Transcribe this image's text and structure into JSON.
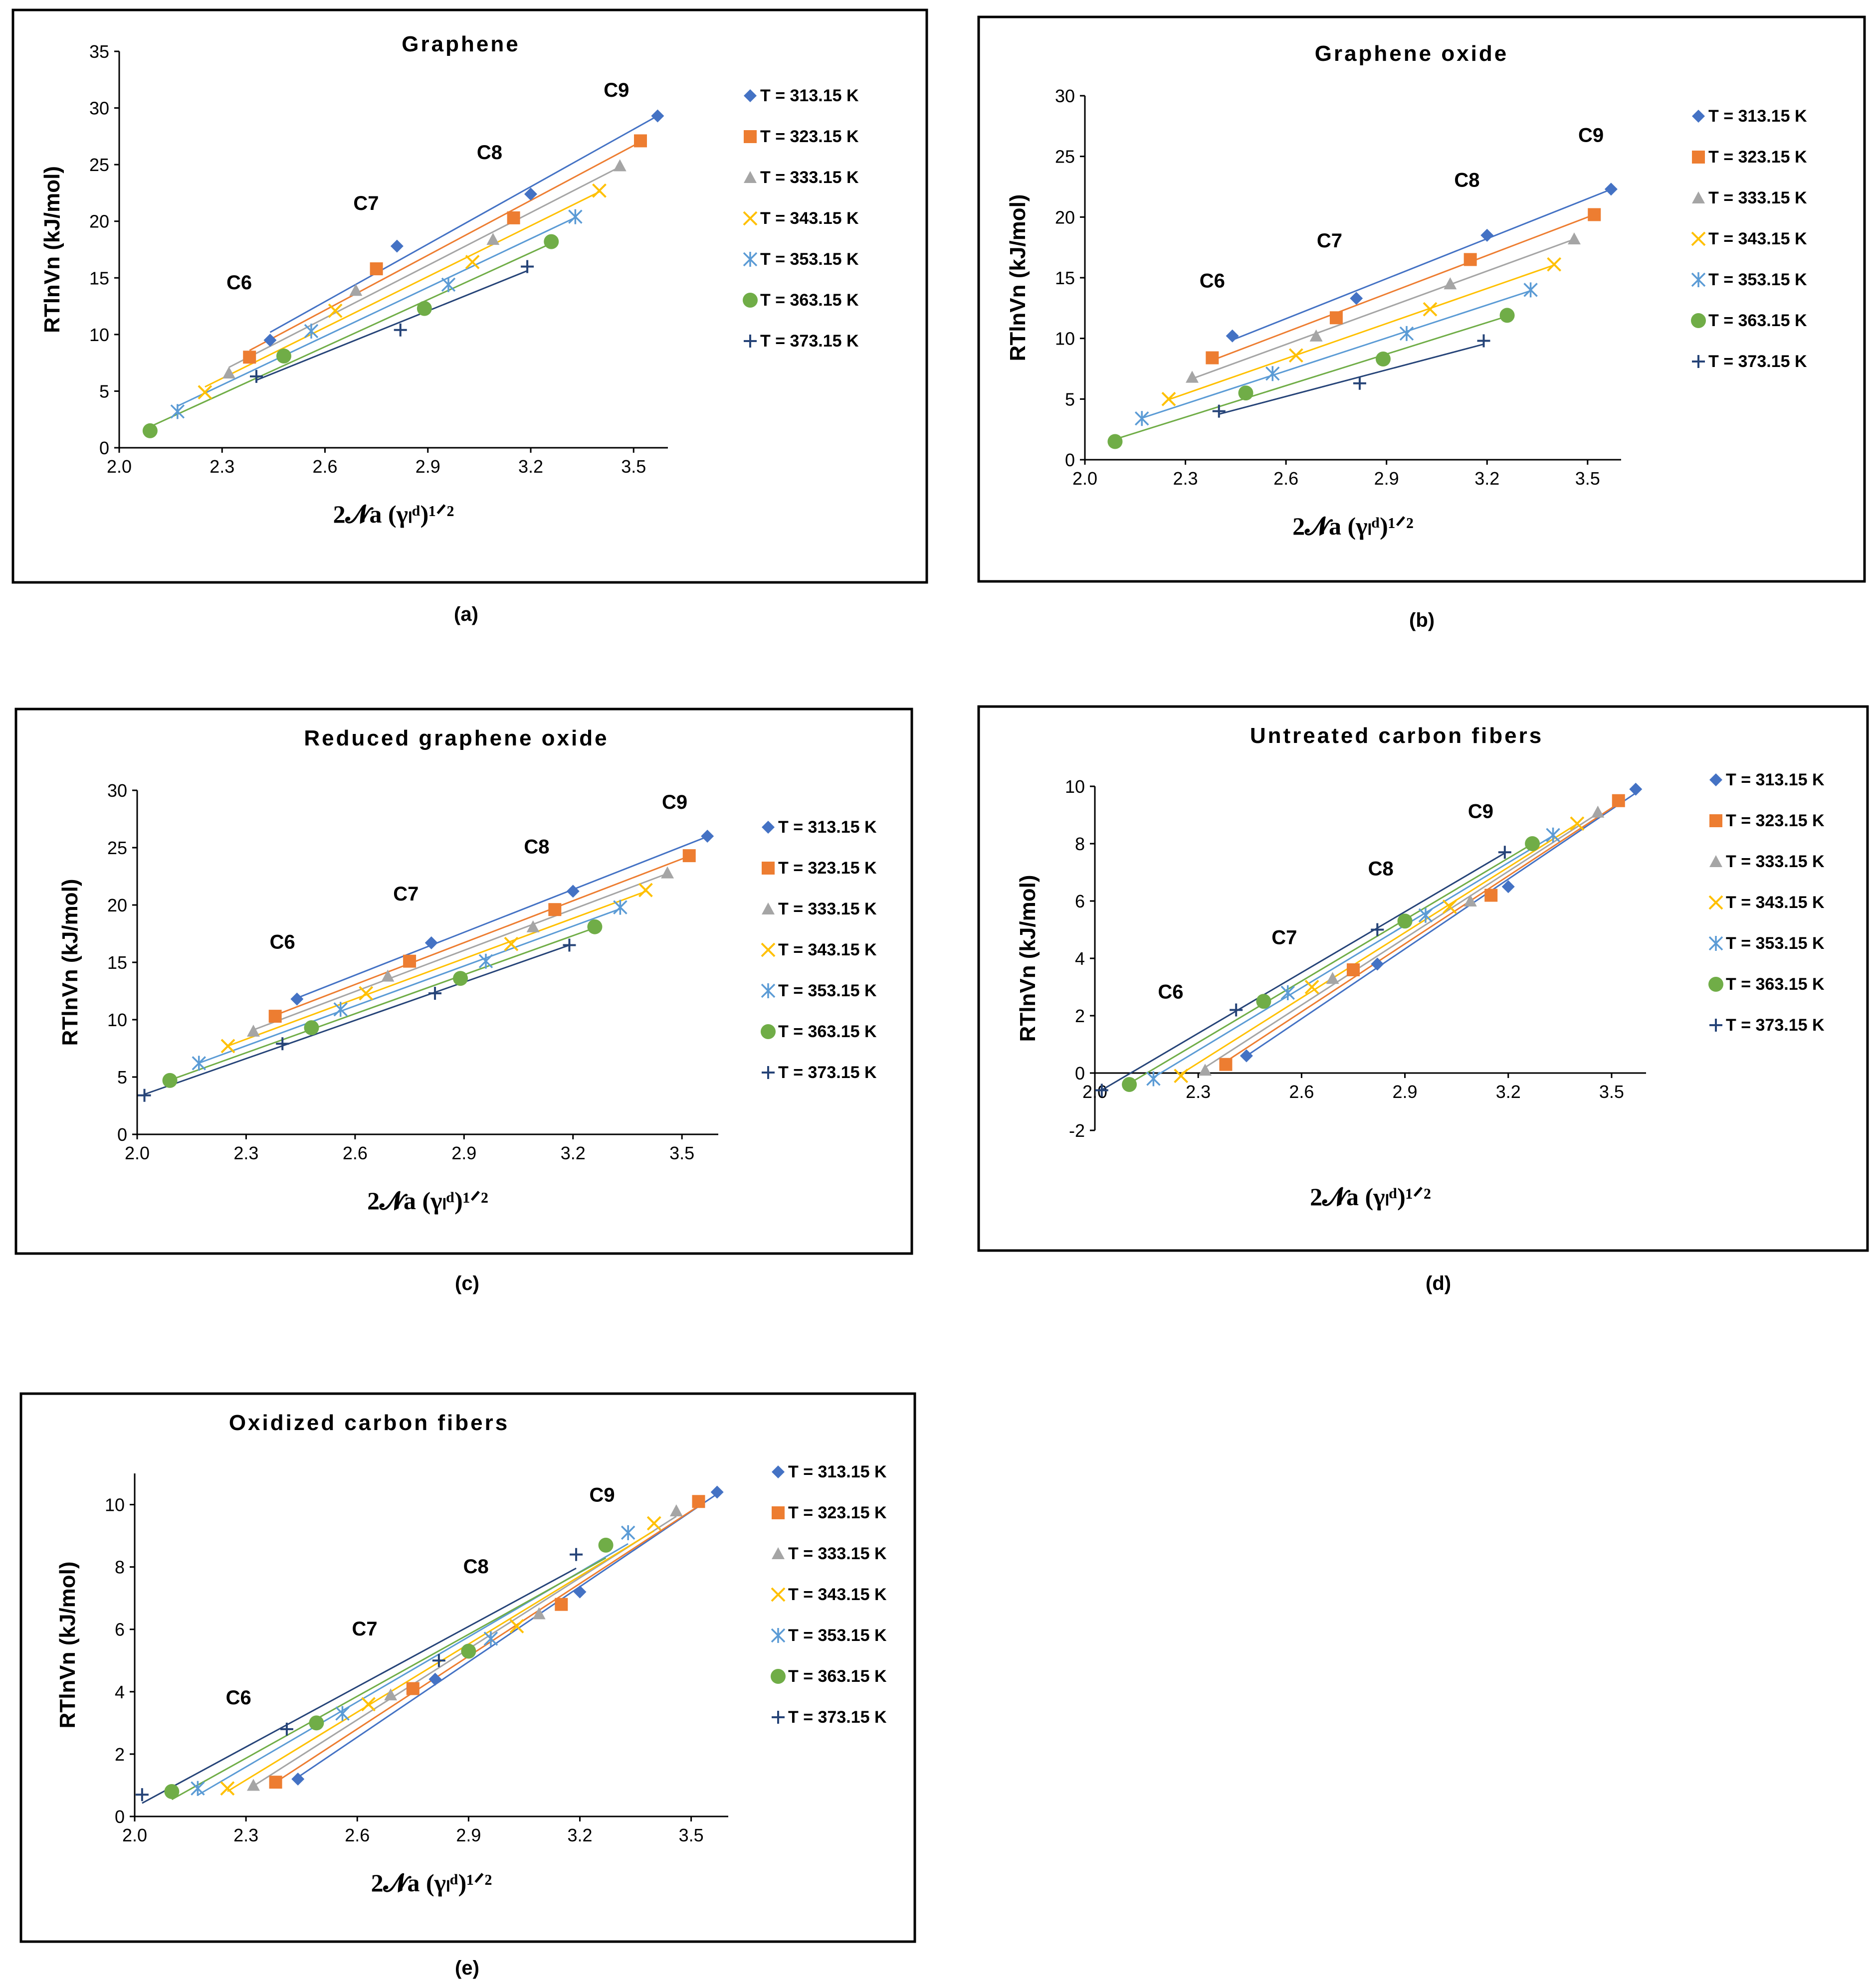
{
  "colors": {
    "T313": "#4472C4",
    "T323": "#ED7D31",
    "T333": "#A5A5A5",
    "T343": "#FFC000",
    "T353": "#5B9BD5",
    "T363": "#70AD47",
    "T373": "#264478"
  },
  "legend": [
    "T = 313.15 K",
    "T = 323.15 K",
    "T = 333.15 K",
    "T = 343.15 K",
    "T = 353.15 K",
    "T = 363.15 K",
    "T = 373.15 K"
  ],
  "chart_data": [
    {
      "type": "scatter",
      "title": "Graphene",
      "caption": "(a)",
      "xlabel": "2𝓝a (γₗᵈ)¹ᐟ²",
      "ylabel": "RTlnVn (kJ/mol)",
      "xlim": [
        2.0,
        3.6
      ],
      "ylim": [
        0,
        35
      ],
      "xticks": [
        2.0,
        2.3,
        2.6,
        2.9,
        3.2,
        3.5
      ],
      "yticks": [
        0,
        5,
        10,
        15,
        20,
        25,
        30,
        35
      ],
      "legend_position": "right",
      "annotations": [
        {
          "text": "C6",
          "x": 2.35,
          "y": 14
        },
        {
          "text": "C7",
          "x": 2.72,
          "y": 21
        },
        {
          "text": "C8",
          "x": 3.08,
          "y": 25.5
        },
        {
          "text": "C9",
          "x": 3.45,
          "y": 31
        }
      ],
      "series": [
        {
          "name": "T = 313.15 K",
          "marker": "diamond",
          "x": [
            2.44,
            2.81,
            3.2,
            3.57
          ],
          "y": [
            9.5,
            17.8,
            22.4,
            29.3
          ]
        },
        {
          "name": "T = 323.15 K",
          "marker": "square",
          "x": [
            2.38,
            2.75,
            3.15,
            3.52
          ],
          "y": [
            8.0,
            15.8,
            20.3,
            27.1
          ]
        },
        {
          "name": "T = 333.15 K",
          "marker": "triangle",
          "x": [
            2.32,
            2.69,
            3.09,
            3.46
          ],
          "y": [
            6.6,
            13.9,
            18.4,
            24.9
          ]
        },
        {
          "name": "T = 343.15 K",
          "marker": "x",
          "x": [
            2.25,
            2.63,
            3.03,
            3.4
          ],
          "y": [
            4.9,
            12.1,
            16.4,
            22.7
          ]
        },
        {
          "name": "T = 353.15 K",
          "marker": "star",
          "x": [
            2.17,
            2.56,
            2.96,
            3.33
          ],
          "y": [
            3.2,
            10.3,
            14.4,
            20.4
          ]
        },
        {
          "name": "T = 363.15 K",
          "marker": "circle",
          "x": [
            2.09,
            2.48,
            2.89,
            3.26
          ],
          "y": [
            1.5,
            8.1,
            12.3,
            18.2
          ]
        },
        {
          "name": "T = 373.15 K",
          "marker": "plus",
          "x": [
            2.4,
            2.82,
            3.19
          ],
          "y": [
            6.3,
            10.4,
            16.0
          ]
        }
      ]
    },
    {
      "type": "scatter",
      "title": "Graphene oxide",
      "caption": "(b)",
      "xlabel": "2𝓝a (γₗᵈ)¹ᐟ²",
      "ylabel": "RTlnVn (kJ/mol)",
      "xlim": [
        2.0,
        3.6
      ],
      "ylim": [
        0,
        30
      ],
      "xticks": [
        2.0,
        2.3,
        2.6,
        2.9,
        3.2,
        3.5
      ],
      "yticks": [
        0,
        5,
        10,
        15,
        20,
        25,
        30
      ],
      "legend_position": "right",
      "annotations": [
        {
          "text": "C6",
          "x": 2.38,
          "y": 14.2
        },
        {
          "text": "C7",
          "x": 2.73,
          "y": 17.5
        },
        {
          "text": "C8",
          "x": 3.14,
          "y": 22.5
        },
        {
          "text": "C9",
          "x": 3.51,
          "y": 26.2
        }
      ],
      "series": [
        {
          "name": "T = 313.15 K",
          "marker": "diamond",
          "x": [
            2.44,
            2.81,
            3.2,
            3.57
          ],
          "y": [
            10.2,
            13.3,
            18.5,
            22.3
          ]
        },
        {
          "name": "T = 323.15 K",
          "marker": "square",
          "x": [
            2.38,
            2.75,
            3.15,
            3.52
          ],
          "y": [
            8.4,
            11.7,
            16.5,
            20.2
          ]
        },
        {
          "name": "T = 333.15 K",
          "marker": "triangle",
          "x": [
            2.32,
            2.69,
            3.09,
            3.46
          ],
          "y": [
            6.8,
            10.2,
            14.5,
            18.2
          ]
        },
        {
          "name": "T = 343.15 K",
          "marker": "x",
          "x": [
            2.25,
            2.63,
            3.03,
            3.4
          ],
          "y": [
            5.0,
            8.6,
            12.4,
            16.1
          ]
        },
        {
          "name": "T = 353.15 K",
          "marker": "star",
          "x": [
            2.17,
            2.56,
            2.96,
            3.33
          ],
          "y": [
            3.4,
            7.1,
            10.4,
            14.0
          ]
        },
        {
          "name": "T = 363.15 K",
          "marker": "circle",
          "x": [
            2.09,
            2.48,
            2.89,
            3.26
          ],
          "y": [
            1.5,
            5.5,
            8.3,
            11.9
          ]
        },
        {
          "name": "T = 373.15 K",
          "marker": "plus",
          "x": [
            2.4,
            2.82,
            3.19
          ],
          "y": [
            4.0,
            6.3,
            9.8
          ]
        }
      ]
    },
    {
      "type": "scatter",
      "title": "Reduced graphene oxide",
      "caption": "(c)",
      "xlabel": "2𝓝a (γₗᵈ)¹ᐟ²",
      "ylabel": "RTlnVn (kJ/mol)",
      "xlim": [
        2.0,
        3.6
      ],
      "ylim": [
        0,
        30
      ],
      "xticks": [
        2.0,
        2.3,
        2.6,
        2.9,
        3.2,
        3.5
      ],
      "yticks": [
        0,
        5,
        10,
        15,
        20,
        25,
        30
      ],
      "legend_position": "right",
      "annotations": [
        {
          "text": "C6",
          "x": 2.4,
          "y": 16.2
        },
        {
          "text": "C7",
          "x": 2.74,
          "y": 20.4
        },
        {
          "text": "C8",
          "x": 3.1,
          "y": 24.5
        },
        {
          "text": "C9",
          "x": 3.48,
          "y": 28.4
        }
      ],
      "series": [
        {
          "name": "T = 313.15 K",
          "marker": "diamond",
          "x": [
            2.44,
            2.81,
            3.2,
            3.57
          ],
          "y": [
            11.8,
            16.7,
            21.2,
            26.0
          ]
        },
        {
          "name": "T = 323.15 K",
          "marker": "square",
          "x": [
            2.38,
            2.75,
            3.15,
            3.52
          ],
          "y": [
            10.3,
            15.1,
            19.6,
            24.3
          ]
        },
        {
          "name": "T = 333.15 K",
          "marker": "triangle",
          "x": [
            2.32,
            2.69,
            3.09,
            3.46
          ],
          "y": [
            9.0,
            13.8,
            18.1,
            22.8
          ]
        },
        {
          "name": "T = 343.15 K",
          "marker": "x",
          "x": [
            2.25,
            2.63,
            3.03,
            3.4
          ],
          "y": [
            7.7,
            12.3,
            16.6,
            21.3
          ]
        },
        {
          "name": "T = 353.15 K",
          "marker": "star",
          "x": [
            2.17,
            2.56,
            2.96,
            3.33
          ],
          "y": [
            6.2,
            10.9,
            15.1,
            19.8
          ]
        },
        {
          "name": "T = 363.15 K",
          "marker": "circle",
          "x": [
            2.09,
            2.48,
            2.89,
            3.26
          ],
          "y": [
            4.7,
            9.3,
            13.6,
            18.1
          ]
        },
        {
          "name": "T = 373.15 K",
          "marker": "plus",
          "x": [
            2.02,
            2.4,
            2.82,
            3.19
          ],
          "y": [
            3.4,
            7.9,
            12.3,
            16.5
          ]
        }
      ]
    },
    {
      "type": "scatter",
      "title": "Untreated carbon fibers",
      "caption": "(d)",
      "xlabel": "2𝓝a (γₗᵈ)¹ᐟ²",
      "ylabel": "RTlnVn (kJ/mol)",
      "xlim": [
        2.0,
        3.6
      ],
      "ylim": [
        -2,
        10
      ],
      "xticks": [
        2.0,
        2.3,
        2.6,
        2.9,
        3.2,
        3.5
      ],
      "yticks": [
        -2,
        0,
        2,
        4,
        6,
        8,
        10
      ],
      "legend_position": "right",
      "annotations": [
        {
          "text": "C6",
          "x": 2.22,
          "y": 2.6
        },
        {
          "text": "C7",
          "x": 2.55,
          "y": 4.5
        },
        {
          "text": "C8",
          "x": 2.83,
          "y": 6.9
        },
        {
          "text": "C9",
          "x": 3.12,
          "y": 8.9
        }
      ],
      "series": [
        {
          "name": "T = 313.15 K",
          "marker": "diamond",
          "x": [
            2.44,
            2.82,
            3.2,
            3.57
          ],
          "y": [
            0.6,
            3.8,
            6.5,
            9.9
          ]
        },
        {
          "name": "T = 323.15 K",
          "marker": "square",
          "x": [
            2.38,
            2.75,
            3.15,
            3.52
          ],
          "y": [
            0.3,
            3.6,
            6.2,
            9.5
          ]
        },
        {
          "name": "T = 333.15 K",
          "marker": "triangle",
          "x": [
            2.32,
            2.69,
            3.09,
            3.46
          ],
          "y": [
            0.1,
            3.3,
            6.0,
            9.1
          ]
        },
        {
          "name": "T = 343.15 K",
          "marker": "x",
          "x": [
            2.25,
            2.63,
            3.03,
            3.4
          ],
          "y": [
            -0.1,
            3.0,
            5.8,
            8.7
          ]
        },
        {
          "name": "T = 353.15 K",
          "marker": "star",
          "x": [
            2.17,
            2.56,
            2.96,
            3.33
          ],
          "y": [
            -0.2,
            2.8,
            5.5,
            8.3
          ]
        },
        {
          "name": "T = 363.15 K",
          "marker": "circle",
          "x": [
            2.1,
            2.49,
            2.9,
            3.27
          ],
          "y": [
            -0.4,
            2.5,
            5.3,
            8.0
          ]
        },
        {
          "name": "T = 373.15 K",
          "marker": "plus",
          "x": [
            2.02,
            2.41,
            2.82,
            3.19
          ],
          "y": [
            -0.6,
            2.2,
            5.0,
            7.7
          ]
        }
      ]
    },
    {
      "type": "scatter",
      "title": "Oxidized carbon fibers",
      "caption": "(e)",
      "xlabel": "2𝓝a (γₗᵈ)¹ᐟ²",
      "ylabel": "RTlnVn (kJ/mol)",
      "xlim": [
        2.0,
        3.6
      ],
      "ylim": [
        0,
        11
      ],
      "xticks": [
        2.0,
        2.3,
        2.6,
        2.9,
        3.2,
        3.5
      ],
      "yticks": [
        0,
        2,
        4,
        6,
        8,
        10
      ],
      "legend_position": "right",
      "annotations": [
        {
          "text": "C6",
          "x": 2.28,
          "y": 3.6
        },
        {
          "text": "C7",
          "x": 2.62,
          "y": 5.8
        },
        {
          "text": "C8",
          "x": 2.92,
          "y": 7.8
        },
        {
          "text": "C9",
          "x": 3.26,
          "y": 10.1
        }
      ],
      "series": [
        {
          "name": "T = 313.15 K",
          "marker": "diamond",
          "x": [
            2.44,
            2.81,
            3.2,
            3.57
          ],
          "y": [
            1.2,
            4.4,
            7.2,
            10.4
          ]
        },
        {
          "name": "T = 323.15 K",
          "marker": "square",
          "x": [
            2.38,
            2.75,
            3.15,
            3.52
          ],
          "y": [
            1.1,
            4.1,
            6.8,
            10.1
          ]
        },
        {
          "name": "T = 333.15 K",
          "marker": "triangle",
          "x": [
            2.32,
            2.69,
            3.09,
            3.46
          ],
          "y": [
            1.0,
            3.9,
            6.5,
            9.8
          ]
        },
        {
          "name": "T = 343.15 K",
          "marker": "x",
          "x": [
            2.25,
            2.63,
            3.03,
            3.4
          ],
          "y": [
            0.9,
            3.6,
            6.1,
            9.4
          ]
        },
        {
          "name": "T = 353.15 K",
          "marker": "star",
          "x": [
            2.17,
            2.56,
            2.96,
            3.33
          ],
          "y": [
            0.9,
            3.3,
            5.7,
            9.1
          ]
        },
        {
          "name": "T = 363.15 K",
          "marker": "circle",
          "x": [
            2.1,
            2.49,
            2.9,
            3.27
          ],
          "y": [
            0.8,
            3.0,
            5.3,
            8.7
          ]
        },
        {
          "name": "T = 373.15 K",
          "marker": "plus",
          "x": [
            2.02,
            2.41,
            2.82,
            3.19
          ],
          "y": [
            0.7,
            2.8,
            5.0,
            8.4
          ]
        }
      ]
    }
  ]
}
